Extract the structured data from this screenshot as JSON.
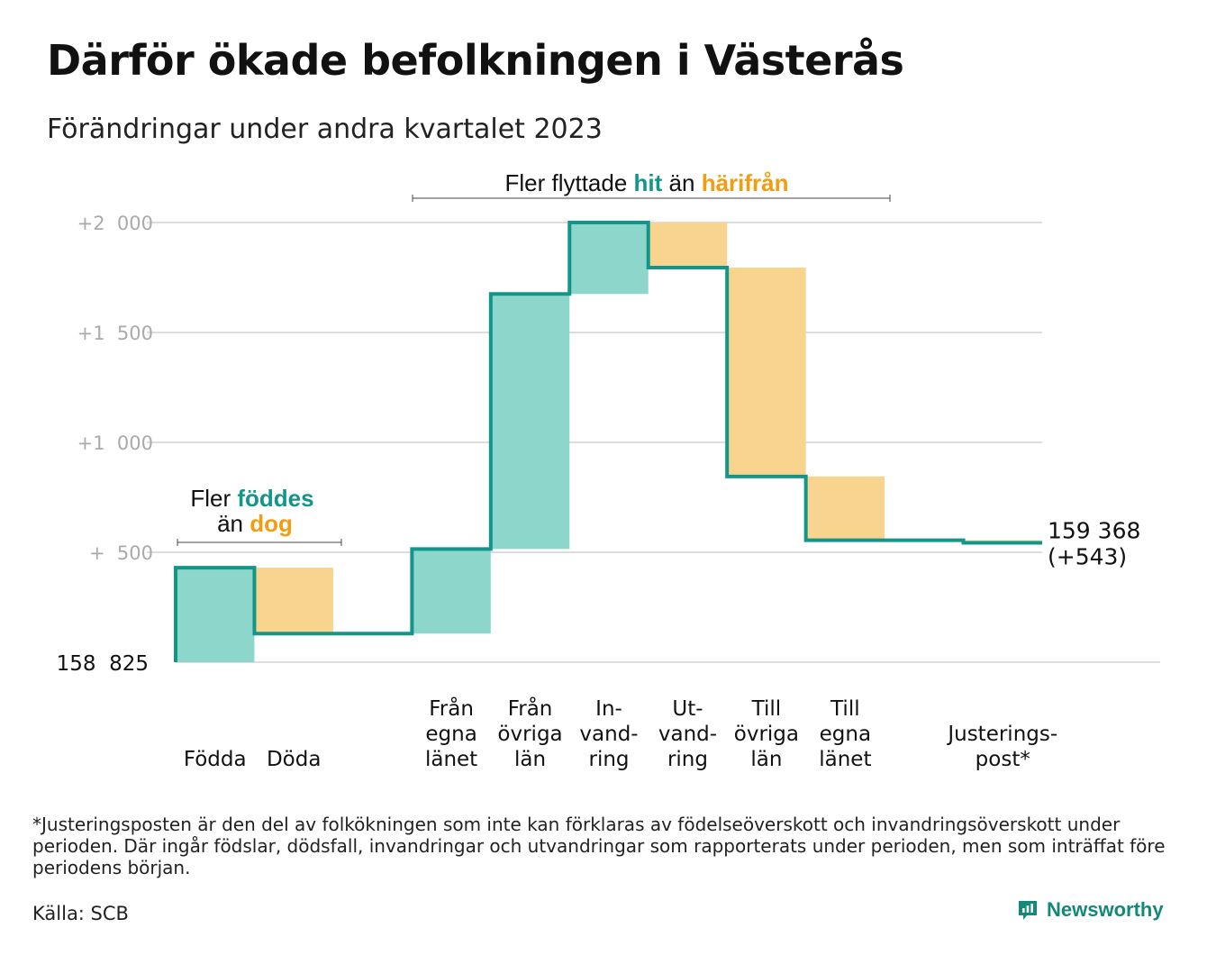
{
  "title": "Därför ökade befolkningen i Västerås",
  "subtitle": "Förändringar under andra kvartalet 2023",
  "annotations": {
    "births": {
      "line1": "Fler ",
      "line1_highlight": "föddes",
      "line2": "än ",
      "line2_highlight": "dog"
    },
    "migration": {
      "prefix": "Fler flyttade ",
      "highlight_in": "hit",
      "middle": " än ",
      "highlight_out": "härifrån"
    }
  },
  "colors": {
    "increase_fill": "#8dd6cc",
    "decrease_fill": "#f9d48f",
    "line": "#13968a",
    "increase_text": "#13968a",
    "decrease_text": "#f39c12",
    "grid": "#dddddd",
    "tick": "#aaaaaa"
  },
  "footnote": "*Justeringsposten är den del av folkökningen som inte kan förklaras av födelseöverskott och invandringsöverskott under perioden. Där ingår födslar, dödsfall, invandringar och utvandringar som rapporterats under perioden, men som inträffat före periodens början.",
  "source": "Källa: SCB",
  "brand": "Newsworthy",
  "chart_data": {
    "type": "waterfall",
    "start_label": "158  825",
    "end_label": [
      "159 368",
      "(+543)"
    ],
    "y_ticks": [
      {
        "value": 500,
        "label": "+  500"
      },
      {
        "value": 1000,
        "label": "+1  000"
      },
      {
        "value": 1500,
        "label": "+1  500"
      },
      {
        "value": 2000,
        "label": "+2  000"
      }
    ],
    "ylim": [
      0,
      2000
    ],
    "steps": [
      {
        "label": [
          "Födda"
        ],
        "from": 0,
        "to": 430,
        "kind": "increase"
      },
      {
        "label": [
          "Döda"
        ],
        "from": 430,
        "to": 130,
        "kind": "decrease"
      },
      {
        "label": [],
        "from": 130,
        "to": 130,
        "kind": "flat"
      },
      {
        "label": [
          "Från",
          "egna",
          "länet"
        ],
        "from": 130,
        "to": 515,
        "kind": "increase"
      },
      {
        "label": [
          "Från",
          "övriga",
          "län"
        ],
        "from": 515,
        "to": 1675,
        "kind": "increase"
      },
      {
        "label": [
          "In-",
          "vand-",
          "ring"
        ],
        "from": 1675,
        "to": 2000,
        "kind": "increase"
      },
      {
        "label": [
          "Ut-",
          "vand-",
          "ring"
        ],
        "from": 2000,
        "to": 1795,
        "kind": "decrease"
      },
      {
        "label": [
          "Till",
          "övriga",
          "län"
        ],
        "from": 1795,
        "to": 845,
        "kind": "decrease"
      },
      {
        "label": [
          "Till",
          "egna",
          "länet"
        ],
        "from": 845,
        "to": 555,
        "kind": "decrease"
      },
      {
        "label": [],
        "from": 555,
        "to": 555,
        "kind": "flat"
      },
      {
        "label": [
          "Justerings-",
          "post*"
        ],
        "from": 555,
        "to": 543,
        "kind": "decrease"
      }
    ]
  }
}
